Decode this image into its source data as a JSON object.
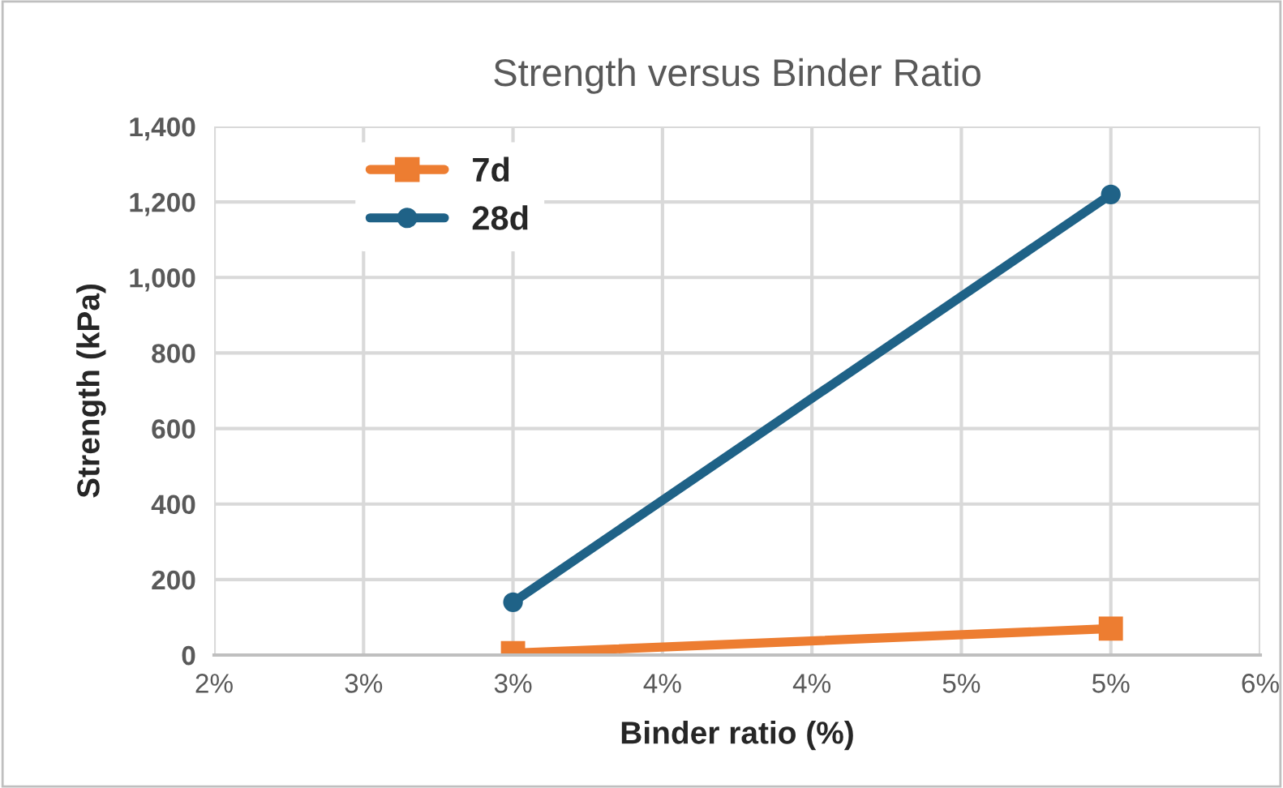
{
  "chart_data": {
    "type": "line",
    "title": "Strength versus Binder Ratio",
    "xlabel": "Binder ratio (%)",
    "ylabel": "Strength (kPa)",
    "x": [
      0.03,
      0.05
    ],
    "series": [
      {
        "name": "7d",
        "color": "#ed7d31",
        "values": [
          5,
          70
        ],
        "marker": "square"
      },
      {
        "name": "28d",
        "color": "#1f6287",
        "values": [
          140,
          1220
        ],
        "marker": "circle"
      }
    ],
    "xlim": [
      0.02,
      0.055
    ],
    "xticks": [
      {
        "value": 0.02,
        "label": "2%"
      },
      {
        "value": 0.025,
        "label": "3%"
      },
      {
        "value": 0.03,
        "label": "3%"
      },
      {
        "value": 0.035,
        "label": "4%"
      },
      {
        "value": 0.04,
        "label": "4%"
      },
      {
        "value": 0.045,
        "label": "5%"
      },
      {
        "value": 0.05,
        "label": "5%"
      },
      {
        "value": 0.055,
        "label": "6%"
      }
    ],
    "ylim": [
      0,
      1400
    ],
    "yticks": [
      {
        "value": 0,
        "label": "0"
      },
      {
        "value": 200,
        "label": "200"
      },
      {
        "value": 400,
        "label": "400"
      },
      {
        "value": 600,
        "label": "600"
      },
      {
        "value": 800,
        "label": "800"
      },
      {
        "value": 1000,
        "label": "1,000"
      },
      {
        "value": 1200,
        "label": "1,200"
      },
      {
        "value": 1400,
        "label": "1,400"
      }
    ],
    "grid": true,
    "legend": "top left",
    "line_style": "solid"
  }
}
